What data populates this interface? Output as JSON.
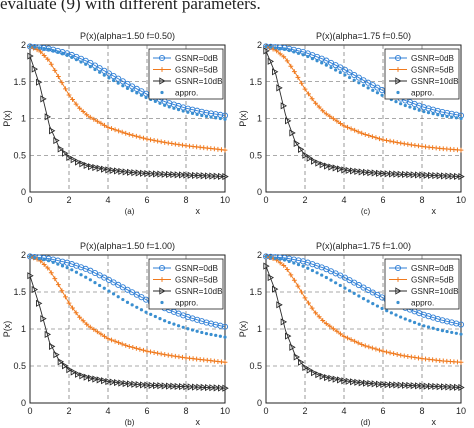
{
  "header_text": "evaluate (9) with different parameters.",
  "legend_entries": [
    "GSNR=0dB",
    "GSNR=5dB",
    "GSNR=10dB",
    "appro."
  ],
  "colors": {
    "gsnr0": "#2f7fd6",
    "gsnr5": "#f07a1e",
    "gsnr10": "#2b2b2b",
    "appro": "#3a8fd0",
    "grid": "#555555",
    "axis": "#222222"
  },
  "chart_data": [
    {
      "type": "line",
      "title": "P(x)(alpha=1.50 f=0.50)",
      "panel_label": "(a)",
      "xlabel": "x",
      "ylabel": "P(x)",
      "xlim": [
        0,
        10
      ],
      "ylim": [
        0,
        2
      ],
      "xticks": [
        "0",
        "2",
        "4",
        "6",
        "8",
        "10"
      ],
      "yticks": [
        "0",
        "0.5",
        "1",
        "1.5",
        "2"
      ],
      "grid": true,
      "legend_position": "top-right",
      "series": [
        {
          "name": "GSNR=0dB",
          "marker": "circle",
          "x": [
            0,
            1,
            2,
            3,
            4,
            5,
            6,
            7,
            8,
            9,
            10
          ],
          "y": [
            1.98,
            1.95,
            1.88,
            1.77,
            1.62,
            1.47,
            1.33,
            1.22,
            1.14,
            1.08,
            1.04
          ]
        },
        {
          "name": "GSNR=5dB",
          "marker": "plus",
          "x": [
            0,
            0.5,
            1,
            1.5,
            2,
            2.5,
            3,
            4,
            5,
            6,
            7,
            8,
            9,
            10
          ],
          "y": [
            1.98,
            1.92,
            1.78,
            1.55,
            1.32,
            1.15,
            1.03,
            0.88,
            0.79,
            0.72,
            0.67,
            0.63,
            0.6,
            0.57
          ]
        },
        {
          "name": "GSNR=10dB",
          "marker": "triangle",
          "x": [
            0,
            0.5,
            1,
            1.5,
            2,
            2.5,
            3,
            4,
            5,
            6,
            7,
            8,
            9,
            10
          ],
          "y": [
            1.85,
            1.45,
            0.9,
            0.6,
            0.47,
            0.4,
            0.35,
            0.3,
            0.27,
            0.25,
            0.24,
            0.23,
            0.22,
            0.21
          ]
        },
        {
          "name": "appro.",
          "marker": "dot",
          "x": [
            0,
            1,
            2,
            3,
            4,
            5,
            6,
            7,
            8,
            9,
            10
          ],
          "y": [
            1.98,
            1.94,
            1.85,
            1.72,
            1.56,
            1.41,
            1.28,
            1.17,
            1.09,
            1.03,
            0.99
          ]
        }
      ]
    },
    {
      "type": "line",
      "title": "P(x)(alpha=1.75 f=0.50)",
      "panel_label": "(c)",
      "xlabel": "x",
      "ylabel": "P(x)",
      "xlim": [
        0,
        10
      ],
      "ylim": [
        0,
        2
      ],
      "xticks": [
        "0",
        "2",
        "4",
        "6",
        "8",
        "10"
      ],
      "yticks": [
        "0",
        "0.5",
        "1",
        "1.5",
        "2"
      ],
      "grid": true,
      "legend_position": "top-right",
      "series": [
        {
          "name": "GSNR=0dB",
          "marker": "circle",
          "x": [
            0,
            1,
            2,
            3,
            4,
            5,
            6,
            7,
            8,
            9,
            10
          ],
          "y": [
            1.98,
            1.96,
            1.9,
            1.8,
            1.67,
            1.52,
            1.38,
            1.26,
            1.16,
            1.09,
            1.04
          ]
        },
        {
          "name": "GSNR=5dB",
          "marker": "plus",
          "x": [
            0,
            0.5,
            1,
            1.5,
            2,
            2.5,
            3,
            4,
            5,
            6,
            7,
            8,
            9,
            10
          ],
          "y": [
            1.98,
            1.93,
            1.82,
            1.62,
            1.4,
            1.22,
            1.08,
            0.9,
            0.79,
            0.71,
            0.66,
            0.62,
            0.59,
            0.57
          ]
        },
        {
          "name": "GSNR=10dB",
          "marker": "triangle",
          "x": [
            0,
            0.5,
            1,
            1.5,
            2,
            2.5,
            3,
            4,
            5,
            6,
            7,
            8,
            9,
            10
          ],
          "y": [
            1.92,
            1.6,
            1.05,
            0.68,
            0.5,
            0.41,
            0.36,
            0.3,
            0.27,
            0.25,
            0.24,
            0.23,
            0.22,
            0.21
          ]
        },
        {
          "name": "appro.",
          "marker": "dot",
          "x": [
            0,
            1,
            2,
            3,
            4,
            5,
            6,
            7,
            8,
            9,
            10
          ],
          "y": [
            1.98,
            1.94,
            1.86,
            1.74,
            1.6,
            1.45,
            1.31,
            1.19,
            1.1,
            1.04,
            1.0
          ]
        }
      ]
    },
    {
      "type": "line",
      "title": "P(x)(alpha=1.50 f=1.00)",
      "panel_label": "(b)",
      "xlabel": "x",
      "ylabel": "P(x)",
      "xlim": [
        0,
        10
      ],
      "ylim": [
        0,
        2
      ],
      "xticks": [
        "0",
        "2",
        "4",
        "6",
        "8",
        "10"
      ],
      "yticks": [
        "0",
        "0.5",
        "1",
        "1.5",
        "2"
      ],
      "grid": true,
      "legend_position": "top-right",
      "series": [
        {
          "name": "GSNR=0dB",
          "marker": "circle",
          "x": [
            0,
            1,
            2,
            3,
            4,
            5,
            6,
            7,
            8,
            9,
            10
          ],
          "y": [
            1.98,
            1.95,
            1.89,
            1.8,
            1.67,
            1.53,
            1.39,
            1.27,
            1.17,
            1.09,
            1.03
          ]
        },
        {
          "name": "GSNR=5dB",
          "marker": "plus",
          "x": [
            0,
            0.5,
            1,
            1.5,
            2,
            2.5,
            3,
            4,
            5,
            6,
            7,
            8,
            9,
            10
          ],
          "y": [
            1.98,
            1.93,
            1.8,
            1.58,
            1.35,
            1.17,
            1.04,
            0.87,
            0.77,
            0.7,
            0.65,
            0.61,
            0.58,
            0.55
          ]
        },
        {
          "name": "GSNR=10dB",
          "marker": "triangle",
          "x": [
            0,
            0.5,
            1,
            1.5,
            2,
            2.5,
            3,
            4,
            5,
            6,
            7,
            8,
            9,
            10
          ],
          "y": [
            1.72,
            1.3,
            0.82,
            0.57,
            0.45,
            0.38,
            0.34,
            0.29,
            0.26,
            0.24,
            0.23,
            0.22,
            0.21,
            0.2
          ]
        },
        {
          "name": "appro.",
          "marker": "dot",
          "x": [
            0,
            1,
            2,
            3,
            4,
            5,
            6,
            7,
            8,
            9,
            10
          ],
          "y": [
            1.98,
            1.92,
            1.82,
            1.68,
            1.52,
            1.36,
            1.22,
            1.1,
            1.01,
            0.94,
            0.89
          ]
        }
      ]
    },
    {
      "type": "line",
      "title": "P(x)(alpha=1.75 f=1.00)",
      "panel_label": "(d)",
      "xlabel": "x",
      "ylabel": "P(x)",
      "xlim": [
        0,
        10
      ],
      "ylim": [
        0,
        2
      ],
      "xticks": [
        "0",
        "2",
        "4",
        "6",
        "8",
        "10"
      ],
      "yticks": [
        "0",
        "0.5",
        "1",
        "1.5",
        "2"
      ],
      "grid": true,
      "legend_position": "top-right",
      "series": [
        {
          "name": "GSNR=0dB",
          "marker": "circle",
          "x": [
            0,
            1,
            2,
            3,
            4,
            5,
            6,
            7,
            8,
            9,
            10
          ],
          "y": [
            1.98,
            1.96,
            1.91,
            1.82,
            1.7,
            1.56,
            1.42,
            1.3,
            1.2,
            1.12,
            1.06
          ]
        },
        {
          "name": "GSNR=5dB",
          "marker": "plus",
          "x": [
            0,
            0.5,
            1,
            1.5,
            2,
            2.5,
            3,
            4,
            5,
            6,
            7,
            8,
            9,
            10
          ],
          "y": [
            1.98,
            1.94,
            1.84,
            1.64,
            1.42,
            1.23,
            1.09,
            0.9,
            0.78,
            0.7,
            0.64,
            0.6,
            0.57,
            0.55
          ]
        },
        {
          "name": "GSNR=10dB",
          "marker": "triangle",
          "x": [
            0,
            0.5,
            1,
            1.5,
            2,
            2.5,
            3,
            4,
            5,
            6,
            7,
            8,
            9,
            10
          ],
          "y": [
            1.85,
            1.5,
            0.98,
            0.64,
            0.48,
            0.4,
            0.35,
            0.3,
            0.27,
            0.25,
            0.24,
            0.23,
            0.22,
            0.21
          ]
        },
        {
          "name": "appro.",
          "marker": "dot",
          "x": [
            0,
            1,
            2,
            3,
            4,
            5,
            6,
            7,
            8,
            9,
            10
          ],
          "y": [
            1.98,
            1.93,
            1.84,
            1.71,
            1.56,
            1.41,
            1.27,
            1.15,
            1.05,
            0.98,
            0.93
          ]
        }
      ]
    }
  ]
}
